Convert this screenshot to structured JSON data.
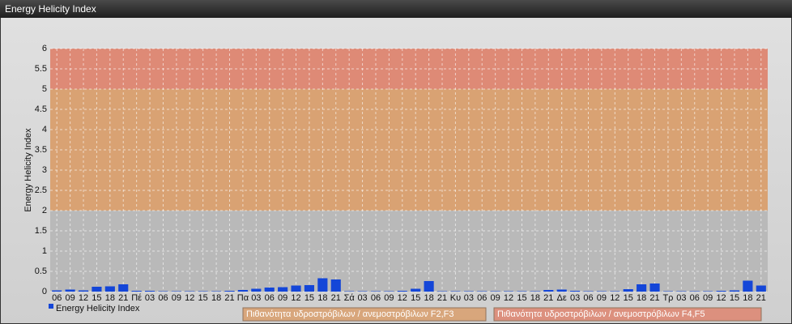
{
  "chart_data": {
    "type": "bar",
    "title": "Energy Helicity Index",
    "y_label": "Energy Helicity Index",
    "categories": [
      "06",
      "09",
      "12",
      "15",
      "18",
      "21",
      "Πέ",
      "03",
      "06",
      "09",
      "12",
      "15",
      "18",
      "21",
      "Πα",
      "03",
      "06",
      "09",
      "12",
      "15",
      "18",
      "21",
      "Σά",
      "03",
      "06",
      "09",
      "12",
      "15",
      "18",
      "21",
      "Κυ",
      "03",
      "06",
      "09",
      "12",
      "15",
      "18",
      "21",
      "Δε",
      "03",
      "06",
      "09",
      "12",
      "15",
      "18",
      "21",
      "Τρ",
      "03",
      "06",
      "09",
      "12",
      "15",
      "18",
      "21"
    ],
    "series": [
      {
        "name": "Energy Helicity Index",
        "color": "#1446d8",
        "values": [
          0.03,
          0.05,
          0.03,
          0.12,
          0.13,
          0.18,
          0.02,
          0.02,
          0.01,
          0.01,
          0.01,
          0.01,
          0.01,
          0.02,
          0.04,
          0.07,
          0.1,
          0.11,
          0.15,
          0.16,
          0.33,
          0.3,
          0.01,
          0.01,
          0.01,
          0.01,
          0.02,
          0.07,
          0.26,
          0.01,
          0.01,
          0.01,
          0.01,
          0.01,
          0.01,
          0.01,
          0.01,
          0.04,
          0.05,
          0.02,
          0.01,
          0.01,
          0.01,
          0.06,
          0.18,
          0.2,
          0.01,
          0.01,
          0.01,
          0.01,
          0.02,
          0.03,
          0.27,
          0.15
        ]
      }
    ],
    "ylim": [
      0,
      6
    ],
    "yticks": [
      0,
      0.5,
      1,
      1.5,
      2,
      2.5,
      3,
      3.5,
      4,
      4.5,
      5,
      5.5,
      6
    ],
    "grid": true,
    "bands": [
      {
        "from": 0,
        "to": 2,
        "color": "#b9b9b9"
      },
      {
        "from": 2,
        "to": 5,
        "color": "#d9a273",
        "label": "Πιθανότητα υδροστρόβιλων / ανεμοστρόβιλων F2,F3"
      },
      {
        "from": 5,
        "to": 6,
        "color": "#de8a76",
        "label": "Πιθανότητα υδροστρόβιλων / ανεμοστρόβιλων F4,F5"
      }
    ]
  }
}
